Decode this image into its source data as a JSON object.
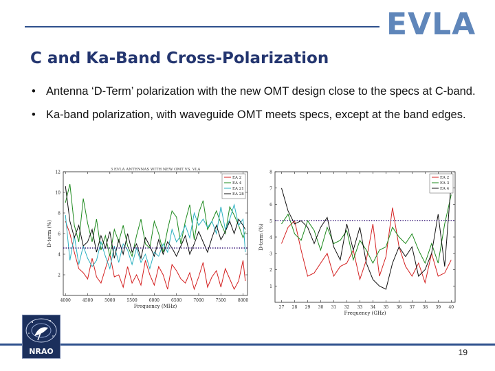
{
  "slide": {
    "logo": "EVLA",
    "title": "C and Ka-Band Cross-Polarization",
    "bullets": [
      "Antenna ‘D-Term’ polarization with the new OMT design close to the specs at C-band.",
      "Ka-band polarization, with waveguide OMT meets specs, except at the band edges."
    ],
    "bullet_glyph": "•",
    "page_number": "19",
    "footer_logo": "NRAO"
  },
  "chart_data": [
    {
      "type": "line",
      "xlabel": "Frequency (MHz)",
      "ylabel": "D-term (%)",
      "xlim": [
        3950,
        8100
      ],
      "ylim": [
        0,
        12
      ],
      "x_ticks": [
        4000,
        4500,
        5000,
        5500,
        6000,
        6500,
        7000,
        7500,
        8000
      ],
      "y_ticks": [
        2,
        4,
        6,
        8,
        10,
        12
      ],
      "spec_line": 4.6,
      "spec_color": "#3a1a7a",
      "x": [
        4000,
        4100,
        4200,
        4300,
        4400,
        4500,
        4600,
        4700,
        4800,
        4900,
        5000,
        5100,
        5200,
        5300,
        5400,
        5500,
        5600,
        5700,
        5800,
        5900,
        6000,
        6100,
        6200,
        6300,
        6400,
        6500,
        6600,
        6700,
        6800,
        6900,
        7000,
        7100,
        7200,
        7300,
        7400,
        7500,
        7600,
        7700,
        7800,
        7900,
        8000,
        8050
      ],
      "series": [
        {
          "name": "EA 2",
          "color": "#d42020",
          "values": [
            7.2,
            6.0,
            4.2,
            2.6,
            2.2,
            1.6,
            3.6,
            1.8,
            1.2,
            2.6,
            4.0,
            1.8,
            2.0,
            0.8,
            2.8,
            1.2,
            2.0,
            1.0,
            3.4,
            2.0,
            1.0,
            2.8,
            2.0,
            0.6,
            3.0,
            2.4,
            1.6,
            1.2,
            2.2,
            0.6,
            1.8,
            3.2,
            0.8,
            1.8,
            2.4,
            0.8,
            2.6,
            1.6,
            0.6,
            1.4,
            3.4,
            1.4
          ]
        },
        {
          "name": "EA 4",
          "color": "#1e8a1e",
          "values": [
            9.0,
            10.8,
            6.8,
            5.2,
            9.4,
            7.0,
            5.2,
            7.4,
            4.4,
            5.8,
            3.8,
            6.4,
            5.2,
            6.8,
            4.8,
            3.8,
            5.8,
            7.4,
            5.0,
            4.6,
            7.2,
            6.0,
            4.2,
            6.4,
            8.2,
            7.6,
            5.0,
            7.2,
            8.8,
            5.4,
            8.0,
            9.2,
            6.4,
            7.2,
            8.2,
            7.0,
            6.0,
            8.6,
            7.8,
            6.8,
            5.6,
            6.2
          ]
        },
        {
          "name": "EA 21",
          "color": "#2ab0c0",
          "values": [
            7.8,
            3.4,
            5.8,
            3.0,
            4.8,
            3.6,
            2.8,
            3.4,
            5.2,
            3.8,
            2.6,
            4.8,
            3.2,
            5.0,
            4.4,
            3.0,
            4.6,
            3.2,
            4.0,
            2.6,
            4.2,
            3.8,
            5.0,
            4.2,
            6.4,
            5.2,
            5.8,
            6.8,
            5.6,
            8.0,
            6.8,
            7.4,
            6.6,
            7.2,
            6.0,
            8.6,
            6.4,
            7.4,
            8.8,
            6.8,
            7.4,
            4.2
          ]
        },
        {
          "name": "EA 28",
          "color": "#111111",
          "values": [
            10.6,
            7.2,
            5.6,
            6.8,
            4.8,
            5.2,
            6.4,
            4.2,
            5.8,
            4.6,
            6.2,
            3.6,
            5.4,
            4.0,
            6.0,
            4.2,
            5.0,
            3.6,
            5.6,
            4.8,
            3.8,
            5.4,
            4.0,
            5.2,
            4.6,
            3.8,
            4.8,
            5.8,
            4.0,
            5.0,
            6.2,
            5.2,
            4.2,
            5.6,
            6.8,
            5.4,
            6.2,
            7.2,
            6.0,
            7.4,
            6.8,
            6.4
          ]
        }
      ],
      "legend_position": "top-right",
      "header_text": "3 EVLA ANTENNAS WITH NEW OMT VS. VLA"
    },
    {
      "type": "line",
      "xlabel": "Frequency (GHz)",
      "ylabel": "D-term (%)",
      "xlim": [
        26.5,
        40.3
      ],
      "ylim": [
        0,
        8
      ],
      "x_ticks": [
        27,
        28,
        29,
        30,
        31,
        32,
        33,
        34,
        35,
        36,
        37,
        38,
        39,
        40
      ],
      "y_ticks": [
        1,
        2,
        3,
        4,
        5,
        6,
        7,
        8
      ],
      "spec_line": 5.0,
      "spec_color": "#3a1a7a",
      "x": [
        27,
        27.5,
        28,
        28.5,
        29,
        29.5,
        30,
        30.5,
        31,
        31.5,
        32,
        32.5,
        33,
        33.5,
        34,
        34.5,
        35,
        35.5,
        36,
        36.5,
        37,
        37.5,
        38,
        38.5,
        39,
        39.5,
        40
      ],
      "series": [
        {
          "name": "EA 2",
          "color": "#d42020",
          "values": [
            3.6,
            4.6,
            5.0,
            3.2,
            1.6,
            1.8,
            2.4,
            3.0,
            1.6,
            2.2,
            2.4,
            3.2,
            1.4,
            2.6,
            4.8,
            1.6,
            2.8,
            5.8,
            3.4,
            2.2,
            1.6,
            2.4,
            1.2,
            3.0,
            1.6,
            1.8,
            2.6
          ]
        },
        {
          "name": "EA 3",
          "color": "#1e8a1e",
          "values": [
            4.8,
            5.4,
            4.2,
            3.8,
            5.0,
            4.4,
            3.2,
            4.6,
            3.6,
            3.8,
            4.4,
            2.6,
            3.8,
            3.2,
            2.4,
            3.2,
            3.4,
            4.6,
            4.0,
            3.6,
            4.2,
            3.2,
            2.4,
            3.6,
            2.4,
            4.8,
            6.6
          ]
        },
        {
          "name": "EA 4",
          "color": "#111111",
          "values": [
            7.0,
            5.6,
            4.8,
            5.0,
            4.6,
            3.6,
            4.6,
            5.2,
            3.4,
            2.6,
            4.8,
            3.2,
            4.6,
            2.4,
            1.4,
            1.0,
            0.8,
            2.4,
            3.4,
            2.8,
            3.4,
            1.6,
            2.0,
            3.0,
            5.4,
            2.2,
            7.4
          ]
        }
      ],
      "legend_position": "top-right"
    }
  ]
}
